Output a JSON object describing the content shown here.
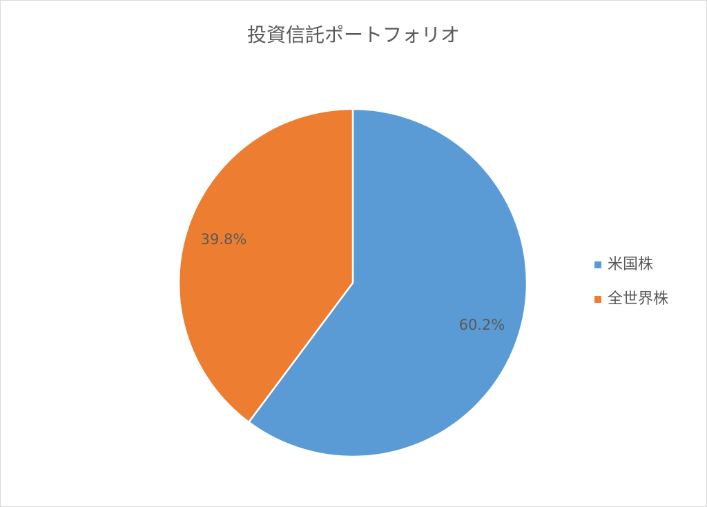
{
  "chart_data": {
    "type": "pie",
    "title": "投資信託ポートフォリオ",
    "categories": [
      "米国株",
      "全世界株"
    ],
    "values": [
      60.2,
      39.8
    ],
    "value_labels": [
      "60.2%",
      "39.8%"
    ],
    "colors": [
      "#5b9bd5",
      "#ed7d31"
    ],
    "legend": "right"
  }
}
